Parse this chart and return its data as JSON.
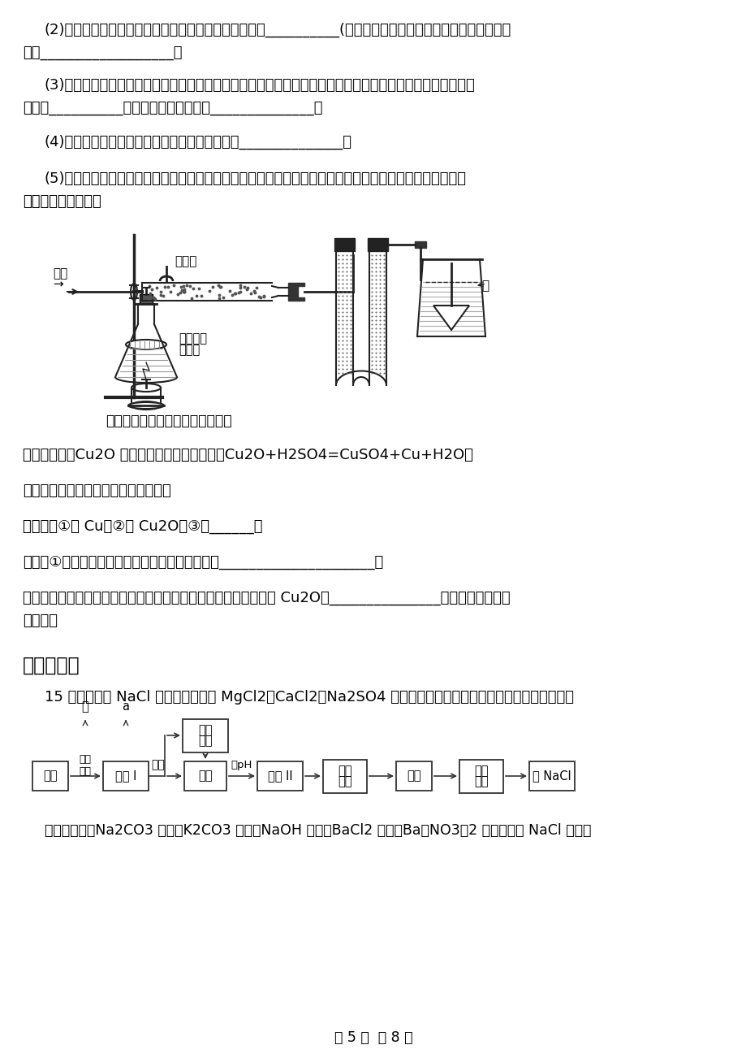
{
  "bg_color": "#ffffff",
  "page_number": "第 5 页  共 8 页",
  "para2_line1": "(2)利用上述仪器制取并收集二氧化碳，你选择的仪器是__________(填序号），实验室制取二氧化碳的化学方程",
  "para2_line2": "式为__________________。",
  "para3_line1": "(3)在不改变二氧化碳的制取和收集方法的情况下，它还可用于实验室制取另一种气体，制取该气体的化学反应",
  "para3_line2": "原理是__________，检验该气体的方法是______________。",
  "para4_line1": "(4)若用氯酸钾、二氧化锰制氧气需补充的仪器是______________。",
  "para5_line1": "(5)为探究氢气的性质，按下图装置进行实验。观察到黑色粉末变红，白色无水硫酸铜变蓝，同时反应中还有",
  "para5_line2": "一种气体单质生成。",
  "note": "（注：白色无水硫酸铜遇水变蓝）",
  "info1": "（查阅资料）Cu2O 是红色，易与稀硫酸反应：Cu2O+H2SO4=CuSO4+Cu+H2O。",
  "info2": "（提出问题）得到的红色物质是什么？",
  "info3": "（猜想）①是 Cu；②是 Cu2O；③是______。",
  "info4": "若猜想①成立，玻璃管中发生反应的化学方程式为_____________________。",
  "info5_line1": "（设计实验）请你设计一个简单的实验来验证红色物质中是否存在 Cu2O：_______________。（操作、现象、",
  "info5_line2": "结论。）",
  "sec5": "五、流程题",
  "q15": "15 ．粗盐除含 NaCl 外，还含有少量 MgCl2、CaCl2、Na2SO4 以及泥沙等杂质。以下是粗盐提纯的操作流程。",
  "reagents": "提供的试剂：Na2CO3 溶液、K2CO3 溶液、NaOH 溶液、BaCl2 溶液、Ba（NO3）2 溶液、饱和 NaCl 溶液。",
  "flow_boxes": [
    "粗盐",
    "加热\n溶解",
    "溶液 I",
    "过滤",
    "沉定\n盐酸",
    "滤液",
    "调pH",
    "溶液 II",
    "蒸发\n结晶",
    "晶体",
    "洗涤\n烘干",
    "纯 NaCl"
  ],
  "diagram_labels": {
    "qingqi": "氢气",
    "yanghuatong": "氧化铜",
    "baise": "白色无水",
    "liusuantong": "硫酸铜",
    "shui": "水",
    "u_label": "U"
  }
}
